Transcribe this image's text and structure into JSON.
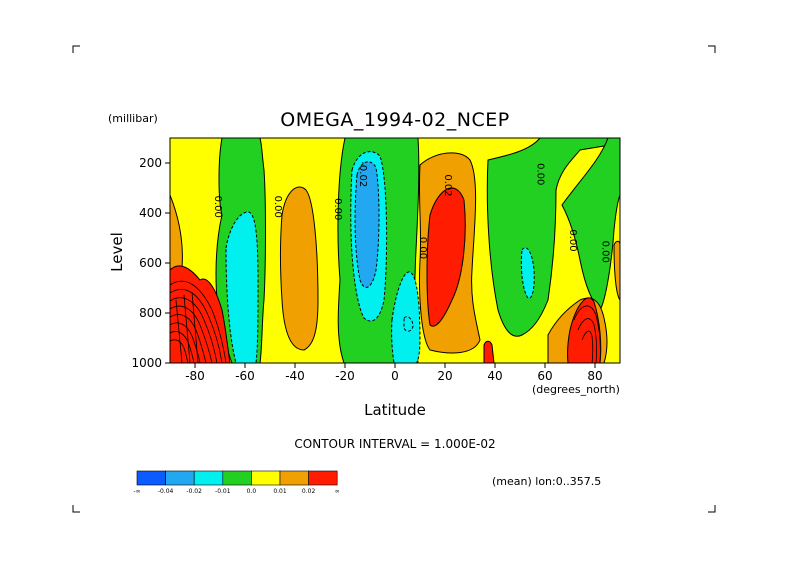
{
  "chart_data": {
    "type": "heatmap",
    "title": "OMEGA_1994-02_NCEP",
    "xlabel": "Latitude",
    "x_units": "(degrees_north)",
    "ylabel": "Level",
    "y_units": "(millibar)",
    "xlim": [
      -90,
      90
    ],
    "ylim": [
      1000,
      100
    ],
    "y_reversed": true,
    "x_ticks": [
      -80,
      -60,
      -40,
      -20,
      0,
      20,
      40,
      60,
      80
    ],
    "y_ticks": [
      200,
      400,
      600,
      800,
      1000
    ],
    "contour_interval_label": "CONTOUR INTERVAL = 1.000E-02",
    "mean_label": "(mean) lon:0..357.5",
    "colorbar": {
      "labels": [
        "-∞",
        "-0.04",
        "-0.02",
        "-0.01",
        "0.0",
        "0.01",
        "0.02",
        "∞"
      ],
      "colors": [
        "#0a5cff",
        "#22a8f0",
        "#00f0f0",
        "#22d022",
        "#ffff00",
        "#f0a000",
        "#ff1c00"
      ]
    },
    "contour_labels": [
      {
        "text": "0.00",
        "lat": -72,
        "lev": 375
      },
      {
        "text": "0.00",
        "lat": -48,
        "lev": 375
      },
      {
        "text": "0.00",
        "lat": -24,
        "lev": 385
      },
      {
        "text": "-0.02",
        "lat": -14,
        "lev": 245
      },
      {
        "text": "0.02",
        "lat": 20,
        "lev": 290
      },
      {
        "text": "0.00",
        "lat": 10,
        "lev": 540
      },
      {
        "text": "0.00",
        "lat": 57,
        "lev": 245
      },
      {
        "text": "0.00",
        "lat": 70,
        "lev": 510
      },
      {
        "text": "0.00",
        "lat": 83,
        "lev": 555
      }
    ],
    "regions": [
      {
        "name": "sh-polar-high-red",
        "value": 0.02,
        "lat_range": [
          -90,
          -68
        ],
        "lev_range": [
          630,
          1000
        ]
      },
      {
        "name": "sh-polar-orange",
        "value": 0.01,
        "lat_range": [
          -90,
          -82
        ],
        "lev_range": [
          320,
          700
        ]
      },
      {
        "name": "sh-midlat-green",
        "value": -0.01,
        "lat_range": [
          -70,
          -55
        ],
        "lev_range": [
          100,
          1000
        ]
      },
      {
        "name": "sh-midlat-cyan",
        "value": -0.02,
        "lat_range": [
          -64,
          -56
        ],
        "lev_range": [
          300,
          1000
        ]
      },
      {
        "name": "sh-subtropic-orange",
        "value": 0.01,
        "lat_range": [
          -46,
          -32
        ],
        "lev_range": [
          280,
          880
        ]
      },
      {
        "name": "tropic-green",
        "value": -0.01,
        "lat_range": [
          -22,
          8
        ],
        "lev_range": [
          100,
          1000
        ]
      },
      {
        "name": "tropic-blue",
        "value": -0.04,
        "lat_range": [
          -18,
          -8
        ],
        "lev_range": [
          170,
          720
        ]
      },
      {
        "name": "equator-cyan",
        "value": -0.02,
        "lat_range": [
          0,
          8
        ],
        "lev_range": [
          620,
          1000
        ]
      },
      {
        "name": "nh-subtropic-orange",
        "value": 0.01,
        "lat_range": [
          10,
          32
        ],
        "lev_range": [
          150,
          1000
        ]
      },
      {
        "name": "nh-subtropic-red",
        "value": 0.02,
        "lat_range": [
          14,
          28
        ],
        "lev_range": [
          220,
          930
        ]
      },
      {
        "name": "nh-midlat-green",
        "value": -0.01,
        "lat_range": [
          38,
          62
        ],
        "lev_range": [
          160,
          870
        ]
      },
      {
        "name": "nh-midlat-cyan",
        "value": -0.02,
        "lat_range": [
          52,
          56
        ],
        "lev_range": [
          470,
          700
        ]
      },
      {
        "name": "nh-polar-orange",
        "value": 0.01,
        "lat_range": [
          66,
          85
        ],
        "lev_range": [
          700,
          1000
        ]
      },
      {
        "name": "nh-polar-red",
        "value": 0.02,
        "lat_range": [
          72,
          84
        ],
        "lev_range": [
          740,
          1000
        ]
      },
      {
        "name": "nh-polar-green",
        "value": -0.01,
        "lat_range": [
          62,
          90
        ],
        "lev_range": [
          100,
          240
        ]
      }
    ]
  }
}
